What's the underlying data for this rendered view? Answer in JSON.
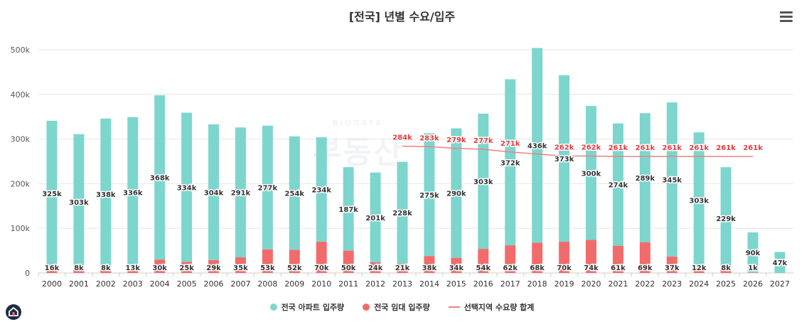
{
  "page_title": "[전국] 년별 수요/입주",
  "menu_icon": "hamburger-menu-icon",
  "logo_icon": "home-logo-icon",
  "watermark": "부동산",
  "watermark_sub": "BIGDATA",
  "colors": {
    "apt": "#7dd6cd",
    "rent": "#f26b6b",
    "demand": "#f08080",
    "demand_label": "#e8383d",
    "grid": "#e6e6e6",
    "text": "#333333"
  },
  "chart_data": {
    "type": "bar",
    "stacked": true,
    "title": "[전국] 년별 수요/입주",
    "categories": [
      "2000",
      "2001",
      "2002",
      "2003",
      "2004",
      "2005",
      "2006",
      "2007",
      "2008",
      "2009",
      "2010",
      "2011",
      "2012",
      "2013",
      "2014",
      "2015",
      "2016",
      "2017",
      "2018",
      "2019",
      "2020",
      "2021",
      "2022",
      "2023",
      "2024",
      "2025",
      "2026",
      "2027"
    ],
    "ylim": [
      0,
      500000
    ],
    "yticks": [
      0,
      100000,
      200000,
      300000,
      400000,
      500000
    ],
    "ytick_labels": [
      "0",
      "100k",
      "200k",
      "300k",
      "400k",
      "500k"
    ],
    "grid": true,
    "legend_position": "bottom",
    "series": [
      {
        "name": "전국 아파트 입주량",
        "kind": "bar",
        "values": [
          325000,
          303000,
          338000,
          336000,
          368000,
          334000,
          304000,
          291000,
          277000,
          254000,
          234000,
          187000,
          201000,
          228000,
          275000,
          290000,
          303000,
          372000,
          436000,
          373000,
          300000,
          274000,
          289000,
          345000,
          303000,
          229000,
          90000,
          47000
        ],
        "labels": [
          "325k",
          "303k",
          "338k",
          "336k",
          "368k",
          "334k",
          "304k",
          "291k",
          "277k",
          "254k",
          "234k",
          "187k",
          "201k",
          "228k",
          "275k",
          "290k",
          "303k",
          "372k",
          "436k",
          "373k",
          "300k",
          "274k",
          "289k",
          "345k",
          "303k",
          "229k",
          "90k",
          "47k"
        ]
      },
      {
        "name": "전국 임대 입주량",
        "kind": "bar",
        "values": [
          16000,
          8000,
          8000,
          13000,
          30000,
          25000,
          29000,
          35000,
          53000,
          52000,
          70000,
          50000,
          24000,
          21000,
          38000,
          34000,
          54000,
          62000,
          68000,
          70000,
          74000,
          61000,
          69000,
          37000,
          12000,
          8000,
          1000,
          0
        ],
        "labels": [
          "16k",
          "8k",
          "8k",
          "13k",
          "30k",
          "25k",
          "29k",
          "35k",
          "53k",
          "52k",
          "70k",
          "50k",
          "24k",
          "21k",
          "38k",
          "34k",
          "54k",
          "62k",
          "68k",
          "70k",
          "74k",
          "61k",
          "69k",
          "37k",
          "12k",
          "8k",
          "1k",
          ""
        ]
      },
      {
        "name": "선택지역 수요량 합계",
        "kind": "line",
        "values": [
          null,
          null,
          null,
          null,
          null,
          null,
          null,
          null,
          null,
          null,
          null,
          null,
          null,
          284000,
          283000,
          279000,
          277000,
          271000,
          null,
          262000,
          262000,
          261000,
          261000,
          261000,
          261000,
          261000,
          261000,
          null
        ],
        "labels": [
          "",
          "",
          "",
          "",
          "",
          "",
          "",
          "",
          "",
          "",
          "",
          "",
          "",
          "284k",
          "283k",
          "279k",
          "277k",
          "271k",
          "",
          "262k",
          "262k",
          "261k",
          "261k",
          "261k",
          "261k",
          "261k",
          "261k",
          ""
        ]
      }
    ]
  }
}
